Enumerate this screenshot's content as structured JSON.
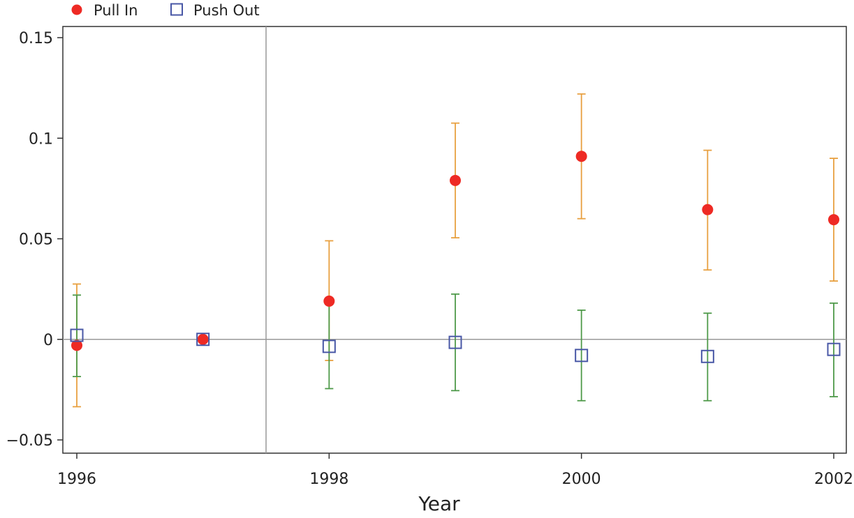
{
  "chart_data": {
    "type": "scatter",
    "title": "",
    "xlabel": "Year",
    "ylabel": "",
    "xlim": [
      1995.95,
      2002.05
    ],
    "ylim": [
      -0.06,
      0.155
    ],
    "xticks": [
      1996,
      1998,
      2000,
      2002
    ],
    "yticks": [
      -0.05,
      0,
      0.05,
      0.1,
      0.15
    ],
    "ytick_labels": [
      "−0.05",
      "0",
      "0.05",
      "0.1",
      "0.15"
    ],
    "reference_lines": {
      "y": 0,
      "x": 1997.5
    },
    "legend": {
      "placement": "top-left",
      "entries": [
        "Pull In",
        "Push Out"
      ]
    },
    "series": [
      {
        "name": "Pull In",
        "marker": "filled-circle",
        "color": "#ee2a24",
        "error_color": "#e8a040",
        "points": [
          {
            "x": 1996,
            "y": -0.003,
            "lo": -0.0335,
            "hi": 0.0275
          },
          {
            "x": 1997,
            "y": 0.0,
            "lo": 0.0,
            "hi": 0.0
          },
          {
            "x": 1998,
            "y": 0.019,
            "lo": -0.0105,
            "hi": 0.049
          },
          {
            "x": 1999,
            "y": 0.079,
            "lo": 0.0505,
            "hi": 0.1075
          },
          {
            "x": 2000,
            "y": 0.091,
            "lo": 0.06,
            "hi": 0.122
          },
          {
            "x": 2001,
            "y": 0.0645,
            "lo": 0.0345,
            "hi": 0.094
          },
          {
            "x": 2002,
            "y": 0.0595,
            "lo": 0.029,
            "hi": 0.09
          }
        ]
      },
      {
        "name": "Push Out",
        "marker": "hollow-square",
        "color": "#4857a6",
        "error_color": "#4f9a4a",
        "points": [
          {
            "x": 1996,
            "y": 0.002,
            "lo": -0.0185,
            "hi": 0.022
          },
          {
            "x": 1997,
            "y": 0.0,
            "lo": 0.0,
            "hi": 0.0
          },
          {
            "x": 1998,
            "y": -0.0035,
            "lo": -0.0245,
            "hi": 0.0175
          },
          {
            "x": 1999,
            "y": -0.0015,
            "lo": -0.0255,
            "hi": 0.0225
          },
          {
            "x": 2000,
            "y": -0.008,
            "lo": -0.0305,
            "hi": 0.0145
          },
          {
            "x": 2001,
            "y": -0.0085,
            "lo": -0.0305,
            "hi": 0.013
          },
          {
            "x": 2002,
            "y": -0.005,
            "lo": -0.0285,
            "hi": 0.018
          }
        ]
      }
    ]
  }
}
